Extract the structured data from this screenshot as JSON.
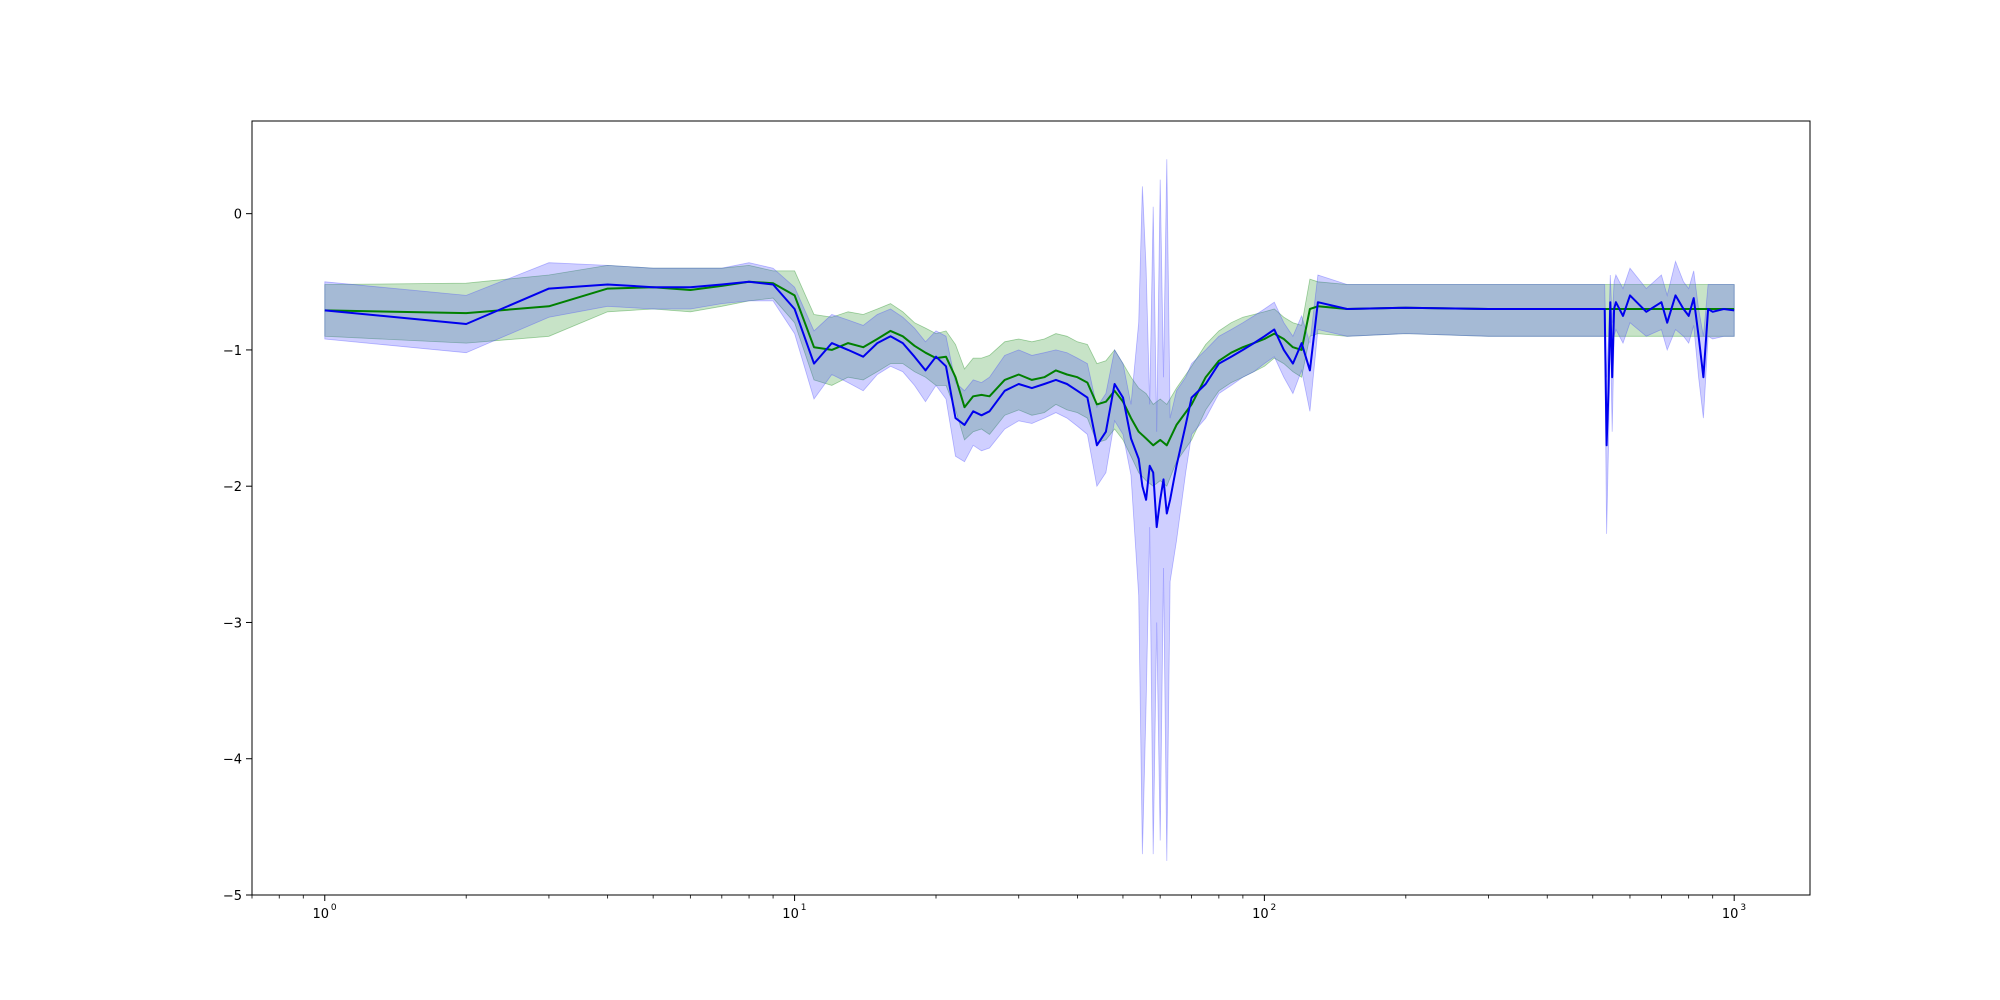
{
  "chart_data": {
    "type": "line",
    "title": "",
    "xlabel": "",
    "ylabel": "",
    "x_scale": "log",
    "xlim": [
      0.7,
      1450
    ],
    "ylim": [
      -5.0,
      0.68
    ],
    "grid": false,
    "legend": "none",
    "x_ticks": [
      {
        "base": "10",
        "exp": "0",
        "value": 1
      },
      {
        "base": "10",
        "exp": "1",
        "value": 10
      },
      {
        "base": "10",
        "exp": "2",
        "value": 100
      },
      {
        "base": "10",
        "exp": "3",
        "value": 1000
      }
    ],
    "y_ticks": [
      {
        "label": "0",
        "value": 0
      },
      {
        "label": "−1",
        "value": -1
      },
      {
        "label": "−2",
        "value": -2
      },
      {
        "label": "−3",
        "value": -3
      },
      {
        "label": "−4",
        "value": -4
      },
      {
        "label": "−5",
        "value": -5
      }
    ],
    "series": [
      {
        "color": "#008000",
        "band_color": "#008000",
        "x": [
          1,
          2,
          3,
          4,
          5,
          6,
          7,
          8,
          9,
          10,
          11,
          12,
          13,
          14,
          15,
          16,
          17,
          18,
          19,
          20,
          21,
          22,
          23,
          24,
          25,
          26,
          28,
          30,
          32,
          34,
          36,
          38,
          40,
          42,
          44,
          46,
          48,
          50,
          52,
          54,
          56,
          58,
          60,
          62,
          65,
          70,
          75,
          80,
          85,
          90,
          95,
          100,
          105,
          110,
          115,
          120,
          125,
          130,
          150,
          200,
          300,
          400,
          500,
          540,
          560,
          600,
          700,
          800,
          900,
          1000
        ],
        "y": [
          -0.71,
          -0.73,
          -0.68,
          -0.55,
          -0.54,
          -0.56,
          -0.53,
          -0.5,
          -0.51,
          -0.6,
          -0.98,
          -1.0,
          -0.95,
          -0.98,
          -0.92,
          -0.86,
          -0.9,
          -0.97,
          -1.02,
          -1.06,
          -1.05,
          -1.2,
          -1.42,
          -1.34,
          -1.33,
          -1.34,
          -1.22,
          -1.18,
          -1.22,
          -1.2,
          -1.15,
          -1.18,
          -1.2,
          -1.24,
          -1.4,
          -1.38,
          -1.3,
          -1.38,
          -1.5,
          -1.6,
          -1.65,
          -1.7,
          -1.66,
          -1.7,
          -1.55,
          -1.4,
          -1.2,
          -1.08,
          -1.02,
          -0.98,
          -0.95,
          -0.92,
          -0.88,
          -0.92,
          -0.98,
          -1.0,
          -0.7,
          -0.68,
          -0.7,
          -0.69,
          -0.7,
          -0.7,
          -0.7,
          -0.7,
          -0.7,
          -0.7,
          -0.7,
          -0.7,
          -0.7,
          -0.7
        ],
        "upper": [
          -0.52,
          -0.51,
          -0.45,
          -0.38,
          -0.4,
          -0.4,
          -0.4,
          -0.38,
          -0.42,
          -0.42,
          -0.74,
          -0.76,
          -0.72,
          -0.74,
          -0.7,
          -0.66,
          -0.72,
          -0.8,
          -0.84,
          -0.88,
          -0.86,
          -0.96,
          -1.14,
          -1.06,
          -1.06,
          -1.04,
          -0.94,
          -0.92,
          -0.94,
          -0.92,
          -0.88,
          -0.9,
          -0.94,
          -0.96,
          -1.1,
          -1.08,
          -1.0,
          -1.1,
          -1.2,
          -1.28,
          -1.32,
          -1.4,
          -1.36,
          -1.4,
          -1.28,
          -1.12,
          -0.96,
          -0.86,
          -0.8,
          -0.76,
          -0.74,
          -0.72,
          -0.7,
          -0.76,
          -0.8,
          -0.82,
          -0.48,
          -0.5,
          -0.52,
          -0.52,
          -0.52,
          -0.52,
          -0.52,
          -0.52,
          -0.52,
          -0.52,
          -0.52,
          -0.52,
          -0.52,
          -0.52
        ],
        "lower": [
          -0.9,
          -0.95,
          -0.9,
          -0.72,
          -0.7,
          -0.72,
          -0.68,
          -0.64,
          -0.62,
          -0.8,
          -1.22,
          -1.26,
          -1.2,
          -1.22,
          -1.16,
          -1.1,
          -1.1,
          -1.16,
          -1.2,
          -1.26,
          -1.26,
          -1.44,
          -1.66,
          -1.6,
          -1.58,
          -1.62,
          -1.48,
          -1.44,
          -1.48,
          -1.46,
          -1.4,
          -1.44,
          -1.46,
          -1.5,
          -1.68,
          -1.66,
          -1.58,
          -1.66,
          -1.78,
          -1.9,
          -1.96,
          -2.0,
          -1.96,
          -2.0,
          -1.82,
          -1.66,
          -1.44,
          -1.3,
          -1.24,
          -1.2,
          -1.16,
          -1.12,
          -1.06,
          -1.1,
          -1.16,
          -1.2,
          -0.9,
          -0.88,
          -0.9,
          -0.88,
          -0.9,
          -0.9,
          -0.9,
          -0.9,
          -0.9,
          -0.9,
          -0.9,
          -0.9,
          -0.9,
          -0.9
        ]
      },
      {
        "color": "#0000ee",
        "band_color": "#4040ff",
        "x": [
          1,
          2,
          3,
          4,
          5,
          6,
          7,
          8,
          9,
          10,
          11,
          12,
          13,
          14,
          15,
          16,
          17,
          18,
          19,
          20,
          21,
          22,
          23,
          24,
          25,
          26,
          28,
          30,
          32,
          34,
          36,
          38,
          40,
          42,
          44,
          46,
          48,
          50,
          52,
          54,
          55,
          56,
          57,
          58,
          59,
          60,
          61,
          62,
          63,
          65,
          68,
          70,
          75,
          80,
          85,
          90,
          95,
          100,
          105,
          110,
          115,
          120,
          125,
          130,
          150,
          200,
          300,
          400,
          500,
          530,
          535,
          540,
          545,
          550,
          555,
          560,
          580,
          600,
          650,
          700,
          720,
          750,
          780,
          800,
          820,
          840,
          860,
          880,
          900,
          950,
          1000
        ],
        "y": [
          -0.71,
          -0.81,
          -0.55,
          -0.52,
          -0.54,
          -0.54,
          -0.52,
          -0.5,
          -0.52,
          -0.7,
          -1.1,
          -0.95,
          -1.0,
          -1.05,
          -0.95,
          -0.9,
          -0.95,
          -1.05,
          -1.15,
          -1.05,
          -1.12,
          -1.5,
          -1.55,
          -1.45,
          -1.48,
          -1.45,
          -1.3,
          -1.25,
          -1.28,
          -1.25,
          -1.22,
          -1.25,
          -1.3,
          -1.35,
          -1.7,
          -1.6,
          -1.25,
          -1.35,
          -1.65,
          -1.8,
          -2.0,
          -2.1,
          -1.85,
          -1.9,
          -2.3,
          -2.1,
          -1.95,
          -2.2,
          -2.1,
          -1.85,
          -1.55,
          -1.35,
          -1.25,
          -1.1,
          -1.05,
          -1.0,
          -0.95,
          -0.9,
          -0.85,
          -1.0,
          -1.1,
          -0.95,
          -1.15,
          -0.65,
          -0.7,
          -0.69,
          -0.7,
          -0.7,
          -0.7,
          -0.7,
          -1.7,
          -1.3,
          -0.65,
          -1.2,
          -0.7,
          -0.65,
          -0.75,
          -0.6,
          -0.72,
          -0.65,
          -0.8,
          -0.6,
          -0.7,
          -0.75,
          -0.62,
          -0.9,
          -1.2,
          -0.7,
          -0.72,
          -0.7,
          -0.71
        ],
        "upper": [
          -0.5,
          -0.6,
          -0.36,
          -0.38,
          -0.4,
          -0.4,
          -0.4,
          -0.36,
          -0.4,
          -0.54,
          -0.86,
          -0.74,
          -0.78,
          -0.82,
          -0.74,
          -0.7,
          -0.76,
          -0.84,
          -0.94,
          -0.86,
          -0.9,
          -1.24,
          -1.3,
          -1.22,
          -1.24,
          -1.2,
          -1.04,
          -1.0,
          -1.04,
          -1.02,
          -1.0,
          -1.02,
          -1.06,
          -1.1,
          -1.42,
          -1.32,
          -1.0,
          -1.1,
          -1.4,
          -0.8,
          0.2,
          -0.4,
          -1.4,
          0.05,
          -1.6,
          0.25,
          -1.2,
          0.4,
          -1.5,
          -1.3,
          -1.2,
          -1.1,
          -1.0,
          -0.9,
          -0.85,
          -0.8,
          -0.75,
          -0.7,
          -0.65,
          -0.8,
          -0.9,
          -0.75,
          -0.95,
          -0.45,
          -0.52,
          -0.52,
          -0.52,
          -0.52,
          -0.52,
          -0.52,
          -1.2,
          -0.9,
          -0.45,
          -0.8,
          -0.5,
          -0.45,
          -0.55,
          -0.4,
          -0.55,
          -0.45,
          -0.6,
          -0.35,
          -0.5,
          -0.55,
          -0.42,
          -0.7,
          -0.9,
          -0.52,
          -0.52,
          -0.52,
          -0.52
        ],
        "lower": [
          -0.92,
          -1.02,
          -0.76,
          -0.68,
          -0.7,
          -0.7,
          -0.66,
          -0.64,
          -0.64,
          -0.88,
          -1.36,
          -1.18,
          -1.24,
          -1.3,
          -1.18,
          -1.12,
          -1.16,
          -1.26,
          -1.38,
          -1.26,
          -1.36,
          -1.78,
          -1.82,
          -1.7,
          -1.74,
          -1.72,
          -1.58,
          -1.52,
          -1.54,
          -1.5,
          -1.46,
          -1.5,
          -1.56,
          -1.62,
          -2.0,
          -1.9,
          -1.52,
          -1.62,
          -1.92,
          -2.8,
          -4.7,
          -3.6,
          -2.3,
          -4.7,
          -3.0,
          -4.6,
          -2.6,
          -4.75,
          -2.7,
          -2.4,
          -1.9,
          -1.62,
          -1.5,
          -1.32,
          -1.26,
          -1.2,
          -1.16,
          -1.1,
          -1.05,
          -1.2,
          -1.32,
          -1.15,
          -1.45,
          -0.85,
          -0.9,
          -0.88,
          -0.9,
          -0.9,
          -0.9,
          -0.9,
          -2.35,
          -1.7,
          -0.85,
          -1.6,
          -0.9,
          -0.85,
          -0.95,
          -0.8,
          -0.9,
          -0.85,
          -1.0,
          -0.85,
          -0.9,
          -0.95,
          -0.82,
          -1.2,
          -1.5,
          -0.9,
          -0.92,
          -0.9,
          -0.9
        ]
      }
    ]
  }
}
